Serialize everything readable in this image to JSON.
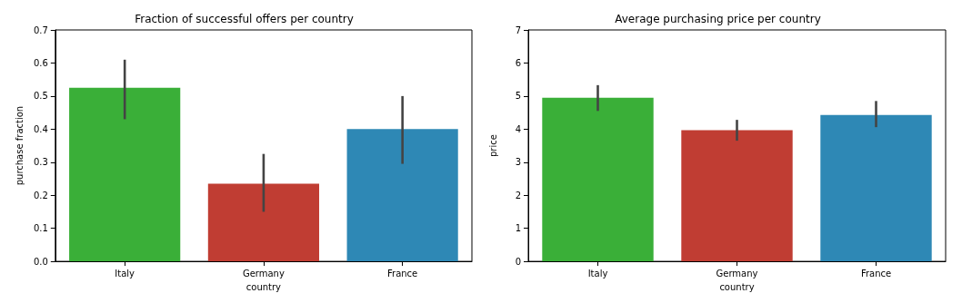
{
  "chart_data": [
    {
      "type": "bar",
      "title": "Fraction of successful offers per country",
      "xlabel": "country",
      "ylabel": "purchase fraction",
      "categories": [
        "Italy",
        "Germany",
        "France"
      ],
      "values": [
        0.525,
        0.235,
        0.4
      ],
      "colors": [
        "#3aaf38",
        "#c03d33",
        "#2e88b5"
      ],
      "errors": [
        [
          0.43,
          0.61
        ],
        [
          0.15,
          0.325
        ],
        [
          0.295,
          0.5
        ]
      ],
      "ylim": [
        0,
        0.7
      ],
      "yticks": [
        {
          "value": 0,
          "label": "0.0"
        },
        {
          "value": 0.1,
          "label": "0.1"
        },
        {
          "value": 0.2,
          "label": "0.2"
        },
        {
          "value": 0.3,
          "label": "0.3"
        },
        {
          "value": 0.4,
          "label": "0.4"
        },
        {
          "value": 0.5,
          "label": "0.5"
        },
        {
          "value": 0.6,
          "label": "0.6"
        },
        {
          "value": 0.7,
          "label": "0.7"
        }
      ],
      "grid": false
    },
    {
      "type": "bar",
      "title": "Average purchasing price per country",
      "xlabel": "country",
      "ylabel": "price",
      "categories": [
        "Italy",
        "Germany",
        "France"
      ],
      "values": [
        4.95,
        3.97,
        4.43
      ],
      "colors": [
        "#3aaf38",
        "#c03d33",
        "#2e88b5"
      ],
      "errors": [
        [
          4.55,
          5.33
        ],
        [
          3.65,
          4.28
        ],
        [
          4.06,
          4.85
        ]
      ],
      "ylim": [
        0,
        7
      ],
      "yticks": [
        0,
        1,
        2,
        3,
        4,
        5,
        6,
        7
      ],
      "grid": false
    }
  ]
}
